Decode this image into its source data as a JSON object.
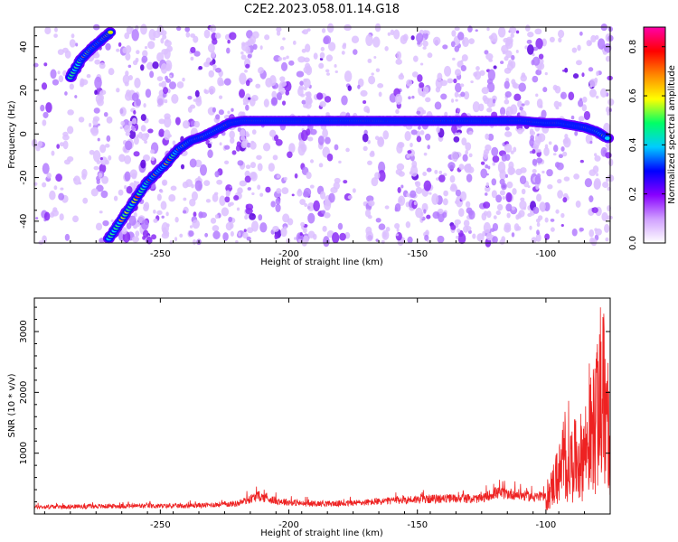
{
  "title": "C2E2.2023.058.01.14.G18",
  "chart_data": [
    {
      "type": "heatmap",
      "xlabel": "Height of straight line (km)",
      "ylabel": "Frequency (Hz)",
      "xlim": [
        -299,
        -75
      ],
      "ylim": [
        -50,
        49
      ],
      "xticks": [
        -250,
        -200,
        -150,
        -100
      ],
      "xtick_labels": [
        "-250",
        "-200",
        "-150",
        "-100"
      ],
      "yticks": [
        -40,
        -20,
        0,
        20,
        40
      ],
      "ytick_labels": [
        "-40",
        "-20",
        "0",
        "20",
        "40"
      ],
      "colorbar": {
        "label": "Normalized spectral amplitude",
        "range": [
          0,
          0.88
        ],
        "ticks": [
          0.0,
          0.2,
          0.4,
          0.6,
          0.8
        ],
        "tick_labels": [
          "0.0",
          "0.2",
          "0.4",
          "0.6",
          "0.8"
        ],
        "colormap": [
          "#ffffff",
          "#d0a0ff",
          "#8800ff",
          "#0000ff",
          "#00ccff",
          "#00ff66",
          "#ffff00",
          "#ff8800",
          "#ff0000",
          "#ff00aa"
        ]
      },
      "ridge_track": {
        "x_km": [
          -270,
          -262,
          -255,
          -248,
          -243,
          -238,
          -233,
          -228,
          -223,
          -218,
          -210,
          -190,
          -160,
          -130,
          -110,
          -100,
          -95,
          -90,
          -85,
          -80,
          -76
        ],
        "frequency_hz": [
          -48,
          -34,
          -22,
          -14,
          -7,
          -3,
          -1,
          2,
          5,
          6,
          6,
          6,
          6,
          6,
          6,
          5,
          5,
          4,
          3,
          1,
          -2
        ]
      },
      "early_track": {
        "x_km": [
          -285,
          -281,
          -277,
          -273,
          -269
        ],
        "frequency_hz": [
          26,
          34,
          39,
          43,
          47
        ]
      }
    },
    {
      "type": "line",
      "xlabel": "Height of straight line (km)",
      "ylabel": "SNR (10 * v/v)",
      "xlim": [
        -299,
        -75
      ],
      "ylim": [
        0,
        3550
      ],
      "xticks": [
        -250,
        -200,
        -150,
        -100
      ],
      "xtick_labels": [
        "-250",
        "-200",
        "-150",
        "-100"
      ],
      "yticks": [
        1000,
        2000,
        3000
      ],
      "ytick_labels": [
        "1000",
        "2000",
        "3000"
      ],
      "series": [
        {
          "color": "#ee2222",
          "envelope_x": [
            -299,
            -280,
            -260,
            -240,
            -220,
            -212,
            -205,
            -195,
            -180,
            -165,
            -155,
            -145,
            -135,
            -125,
            -120,
            -112,
            -105,
            -100,
            -97,
            -94,
            -90,
            -86,
            -83,
            -80,
            -78,
            -76,
            -75
          ],
          "envelope_y": [
            150,
            160,
            170,
            170,
            220,
            380,
            280,
            220,
            220,
            260,
            300,
            320,
            330,
            320,
            450,
            420,
            360,
            350,
            900,
            1300,
            1500,
            1700,
            2200,
            2800,
            3400,
            2600,
            2000
          ]
        }
      ]
    }
  ]
}
